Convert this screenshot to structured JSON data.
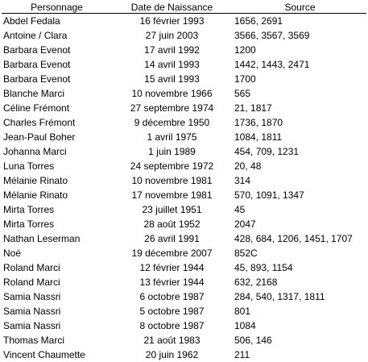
{
  "table": {
    "headers": [
      "Personnage",
      "Date de Naissance",
      "Source"
    ],
    "rows": [
      {
        "name": "Abdel Fedala",
        "date": "16 février 1993",
        "source": "1656, 2691"
      },
      {
        "name": "Antoine / Clara",
        "date": "27 juin 2003",
        "source": "3566, 3567, 3569"
      },
      {
        "name": "Barbara Evenot",
        "date": "17 avril 1992",
        "source": "1200"
      },
      {
        "name": "Barbara Evenot",
        "date": "14 avril 1993",
        "source": "1442, 1443, 2471"
      },
      {
        "name": "Barbara Evenot",
        "date": "15 avril 1993",
        "source": "1700"
      },
      {
        "name": "Blanche Marci",
        "date": "10 novembre 1966",
        "source": "565"
      },
      {
        "name": "Céline Frémont",
        "date": "27 septembre 1974",
        "source": "21, 1817"
      },
      {
        "name": "Charles Frémont",
        "date": "9 décembre 1950",
        "source": "1736, 1870"
      },
      {
        "name": "Jean-Paul Boher",
        "date": "1 avril 1975",
        "source": "1084, 1811"
      },
      {
        "name": "Johanna Marci",
        "date": "1 juin 1989",
        "source": "454, 709, 1231"
      },
      {
        "name": "Luna Torres",
        "date": "24 septembre 1972",
        "source": "20, 48"
      },
      {
        "name": "Mélanie Rinato",
        "date": "10 novembre 1981",
        "source": "314"
      },
      {
        "name": "Mélanie Rinato",
        "date": "17 novembre 1981",
        "source": "570, 1091, 1347"
      },
      {
        "name": "Mirta Torres",
        "date": "23 juillet 1951",
        "source": "45"
      },
      {
        "name": "Mirta Torres",
        "date": "28 août 1952",
        "source": "2047"
      },
      {
        "name": "Nathan Leserman",
        "date": "26 avril 1991",
        "source": "428, 684, 1206, 1451, 1707"
      },
      {
        "name": "Noé",
        "date": "19 décembre 2007",
        "source": "852C"
      },
      {
        "name": "Roland Marci",
        "date": "12 février 1944",
        "source": "45, 893, 1154"
      },
      {
        "name": "Roland Marci",
        "date": "13 février 1944",
        "source": "632, 2168"
      },
      {
        "name": "Samia Nassri",
        "date": "6 octobre 1987",
        "source": "284, 540, 1317, 1811"
      },
      {
        "name": "Samia Nassri",
        "date": "5 octobre 1987",
        "source": "801"
      },
      {
        "name": "Samia Nassri",
        "date": "8 octobre 1987",
        "source": "1084"
      },
      {
        "name": "Thomas Marci",
        "date": "21 août 1983",
        "source": "506, 146"
      },
      {
        "name": "Vincent Chaumette",
        "date": "20 juin 1962",
        "source": "211"
      }
    ]
  }
}
